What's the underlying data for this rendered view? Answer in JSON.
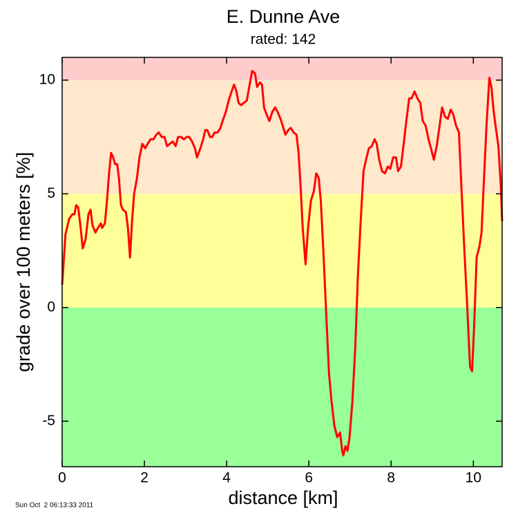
{
  "chart_data": {
    "type": "line",
    "title": "E. Dunne Ave",
    "subtitle": "rated: 142",
    "x_label": "distance [km]",
    "y_label": "grade over 100 meters [%]",
    "footnote": "Sun Oct  2 06:13:33 2011",
    "color": "#ff0000",
    "band_edges": [
      0,
      5,
      10
    ],
    "band_colors": [
      "#99ff99",
      "#ffff99",
      "#ffe8cc",
      "#ffcccc"
    ],
    "xlim": [
      0,
      10.7
    ],
    "ylim": [
      -7,
      11
    ],
    "xticks": [
      0,
      2,
      4,
      6,
      8,
      10
    ],
    "yticks": [
      -5,
      0,
      5,
      10
    ],
    "x": [
      0,
      0.08,
      0.17,
      0.25,
      0.3,
      0.34,
      0.39,
      0.45,
      0.5,
      0.57,
      0.64,
      0.69,
      0.74,
      0.81,
      0.87,
      0.94,
      0.97,
      1.04,
      1.09,
      1.14,
      1.19,
      1.24,
      1.29,
      1.34,
      1.38,
      1.43,
      1.48,
      1.55,
      1.6,
      1.65,
      1.7,
      1.75,
      1.82,
      1.88,
      1.95,
      2.02,
      2.08,
      2.15,
      2.22,
      2.29,
      2.35,
      2.42,
      2.49,
      2.55,
      2.62,
      2.69,
      2.76,
      2.82,
      2.89,
      2.96,
      3.03,
      3.09,
      3.16,
      3.23,
      3.28,
      3.36,
      3.43,
      3.48,
      3.53,
      3.6,
      3.65,
      3.71,
      3.78,
      3.85,
      3.92,
      3.98,
      4.05,
      4.12,
      4.18,
      4.24,
      4.29,
      4.35,
      4.42,
      4.49,
      4.55,
      4.62,
      4.69,
      4.74,
      4.81,
      4.86,
      4.91,
      4.97,
      5.04,
      5.11,
      5.18,
      5.24,
      5.31,
      5.38,
      5.43,
      5.5,
      5.56,
      5.63,
      5.7,
      5.75,
      5.8,
      5.85,
      5.92,
      5.98,
      6.05,
      6.12,
      6.18,
      6.24,
      6.29,
      6.35,
      6.42,
      6.49,
      6.55,
      6.62,
      6.69,
      6.76,
      6.81,
      6.84,
      6.89,
      6.94,
      6.99,
      7.06,
      7.13,
      7.19,
      7.26,
      7.33,
      7.39,
      7.46,
      7.53,
      7.6,
      7.65,
      7.71,
      7.78,
      7.85,
      7.92,
      7.98,
      8.05,
      8.12,
      8.17,
      8.24,
      8.3,
      8.37,
      8.44,
      8.5,
      8.57,
      8.64,
      8.71,
      8.77,
      8.84,
      8.91,
      8.97,
      9.04,
      9.11,
      9.18,
      9.24,
      9.31,
      9.38,
      9.45,
      9.51,
      9.58,
      9.65,
      9.71,
      9.78,
      9.85,
      9.92,
      9.97,
      10.02,
      10.08,
      10.15,
      10.2,
      10.25,
      10.32,
      10.39,
      10.44,
      10.49,
      10.54,
      10.61,
      10.67,
      10.7
    ],
    "values": [
      1.0,
      3.2,
      3.9,
      4.1,
      4.1,
      4.5,
      4.4,
      3.5,
      2.6,
      3.0,
      4.1,
      4.3,
      3.6,
      3.3,
      3.5,
      3.7,
      3.5,
      3.7,
      4.7,
      5.9,
      6.8,
      6.6,
      6.3,
      6.3,
      5.7,
      4.5,
      4.3,
      4.2,
      3.5,
      2.2,
      3.8,
      5.0,
      5.7,
      6.6,
      7.2,
      7.0,
      7.2,
      7.4,
      7.4,
      7.6,
      7.7,
      7.5,
      7.5,
      7.1,
      7.2,
      7.3,
      7.1,
      7.5,
      7.5,
      7.4,
      7.5,
      7.5,
      7.3,
      7.0,
      6.6,
      7.0,
      7.4,
      7.8,
      7.8,
      7.5,
      7.5,
      7.7,
      7.7,
      7.9,
      8.3,
      8.6,
      9.1,
      9.5,
      9.8,
      9.5,
      9.0,
      8.9,
      9.0,
      9.1,
      9.7,
      10.4,
      10.3,
      9.7,
      9.9,
      9.8,
      8.8,
      8.5,
      8.2,
      8.6,
      8.8,
      8.6,
      8.3,
      7.9,
      7.6,
      7.8,
      7.9,
      7.7,
      7.6,
      6.8,
      5.3,
      3.5,
      1.9,
      3.5,
      4.7,
      5.1,
      5.9,
      5.7,
      4.7,
      2.6,
      -0.2,
      -2.9,
      -4.1,
      -5.2,
      -5.7,
      -5.5,
      -6.3,
      -6.5,
      -6.1,
      -6.3,
      -5.7,
      -4.1,
      -1.7,
      1.3,
      3.8,
      6.0,
      6.5,
      7.0,
      7.1,
      7.4,
      7.2,
      6.5,
      6.0,
      5.9,
      6.2,
      6.1,
      6.6,
      6.6,
      6.0,
      6.2,
      7.1,
      8.2,
      9.2,
      9.2,
      9.5,
      9.2,
      9.0,
      8.2,
      8.0,
      7.4,
      7.0,
      6.5,
      7.1,
      8.0,
      8.8,
      8.4,
      8.3,
      8.7,
      8.5,
      8.0,
      7.7,
      5.3,
      2.6,
      0.1,
      -2.6,
      -2.8,
      -0.8,
      2.2,
      2.7,
      3.3,
      5.3,
      8.0,
      10.1,
      9.7,
      8.7,
      8.0,
      7.1,
      5.3,
      3.8
    ]
  }
}
